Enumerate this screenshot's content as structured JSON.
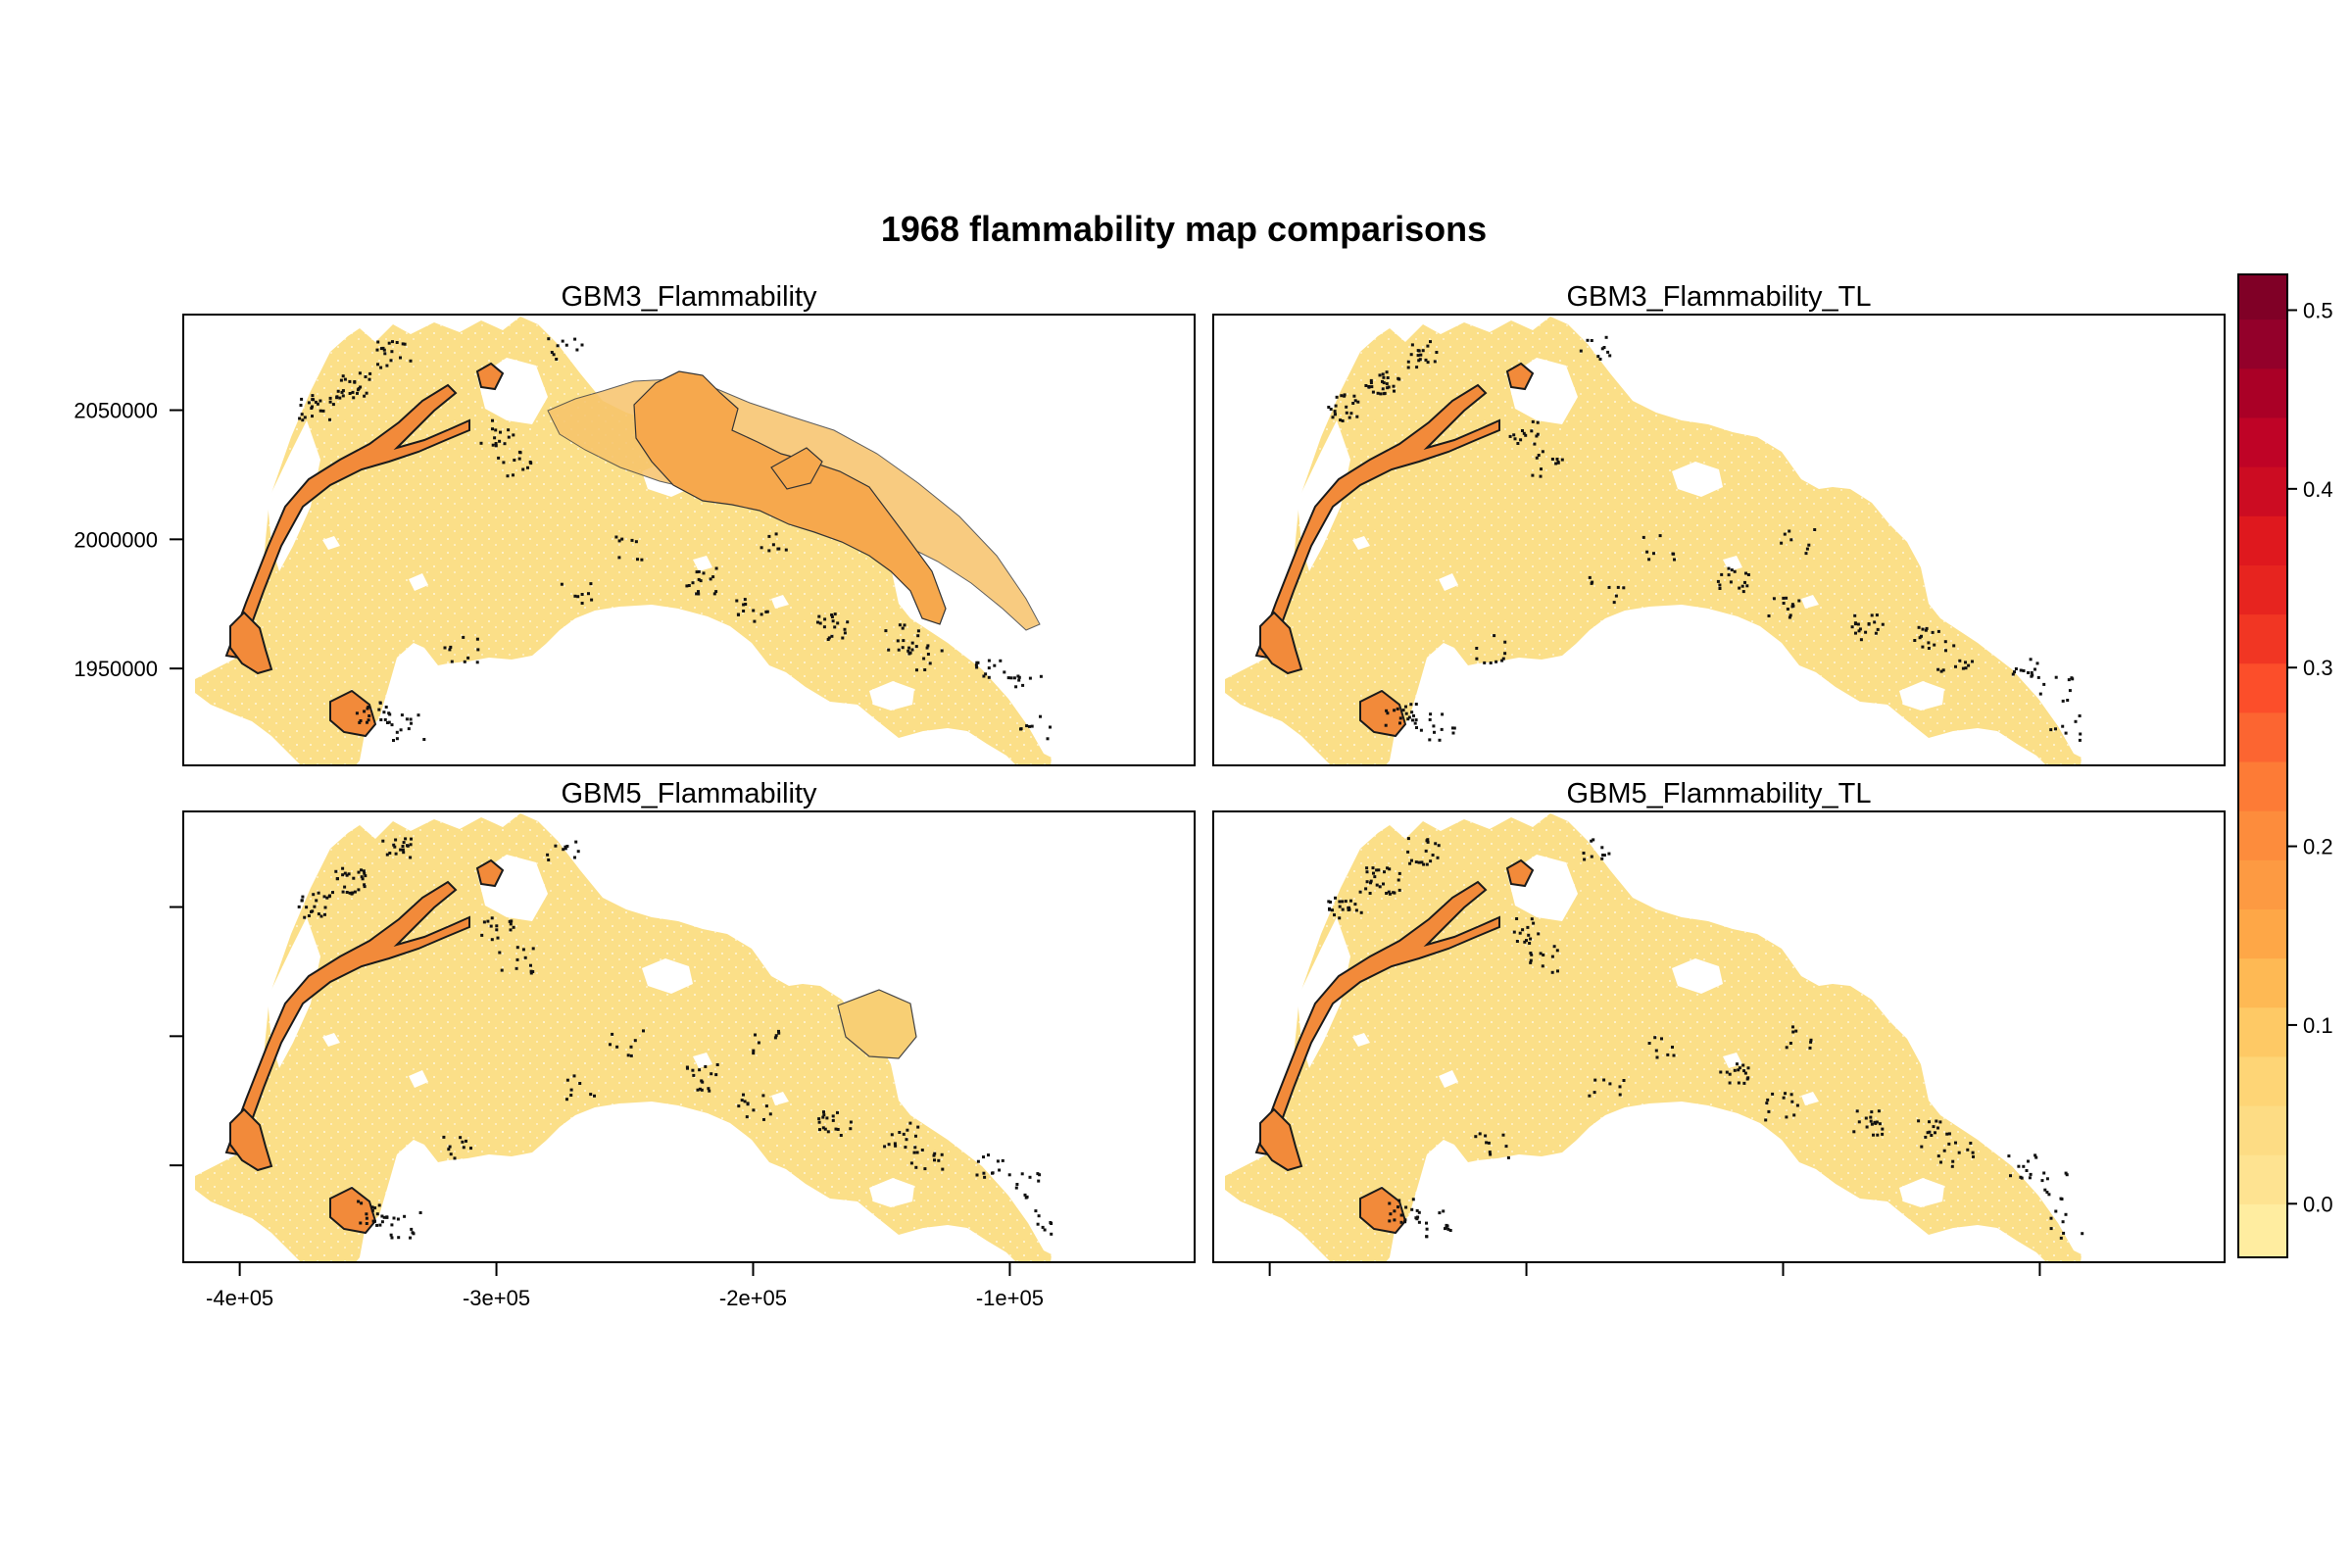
{
  "title": "1968 flammability map comparisons",
  "panels": [
    {
      "id": "gbm3",
      "label": "GBM3_Flammability",
      "wide_interior": true
    },
    {
      "id": "gbm3tl",
      "label": "GBM3_Flammability_TL",
      "wide_interior": false
    },
    {
      "id": "gbm5",
      "label": "GBM5_Flammability",
      "wide_interior": false
    },
    {
      "id": "gbm5tl",
      "label": "GBM5_Flammability_TL",
      "wide_interior": false
    }
  ],
  "x_axis": {
    "ticks": [
      -400000,
      -300000,
      -200000,
      -100000
    ],
    "labels": [
      "-4e+05",
      "-3e+05",
      "-2e+05",
      "-1e+05"
    ],
    "range": [
      -422000,
      -28000
    ]
  },
  "y_axis": {
    "ticks": [
      1950000,
      2000000,
      2050000
    ],
    "labels": [
      "1950000",
      "2000000",
      "2050000"
    ],
    "range": [
      1912500,
      2087000
    ]
  },
  "colorbar": {
    "range": [
      -0.03,
      0.52
    ],
    "ticks": [
      0.0,
      0.1,
      0.2,
      0.3,
      0.4,
      0.5
    ],
    "labels": [
      "0.0",
      "0.1",
      "0.2",
      "0.3",
      "0.4",
      "0.5"
    ],
    "breaks": [
      -0.03,
      0.0,
      0.0275,
      0.055,
      0.0825,
      0.11,
      0.1375,
      0.165,
      0.1925,
      0.22,
      0.2475,
      0.275,
      0.3025,
      0.33,
      0.3575,
      0.385,
      0.4125,
      0.44,
      0.4675,
      0.495,
      0.52
    ],
    "colors": [
      "#ffeda0",
      "#fee391",
      "#fddc84",
      "#fed576",
      "#fec965",
      "#feb954",
      "#fea747",
      "#fd9a42",
      "#fd8c3c",
      "#fd7b36",
      "#fc6531",
      "#fc4e2a",
      "#f13623",
      "#e7241f",
      "#df181e",
      "#cc0c22",
      "#bf0326",
      "#aa0026",
      "#93002a",
      "#800026"
    ]
  },
  "chart_data": [
    {
      "type": "heatmap",
      "title": "GBM3_Flammability",
      "value_range": [
        0.0,
        0.25
      ]
    },
    {
      "type": "heatmap",
      "title": "GBM3_Flammability_TL",
      "value_range": [
        0.0,
        0.22
      ]
    },
    {
      "type": "heatmap",
      "title": "GBM5_Flammability",
      "value_range": [
        0.0,
        0.22
      ]
    },
    {
      "type": "heatmap",
      "title": "GBM5_Flammability_TL",
      "value_range": [
        0.0,
        0.22
      ]
    }
  ]
}
